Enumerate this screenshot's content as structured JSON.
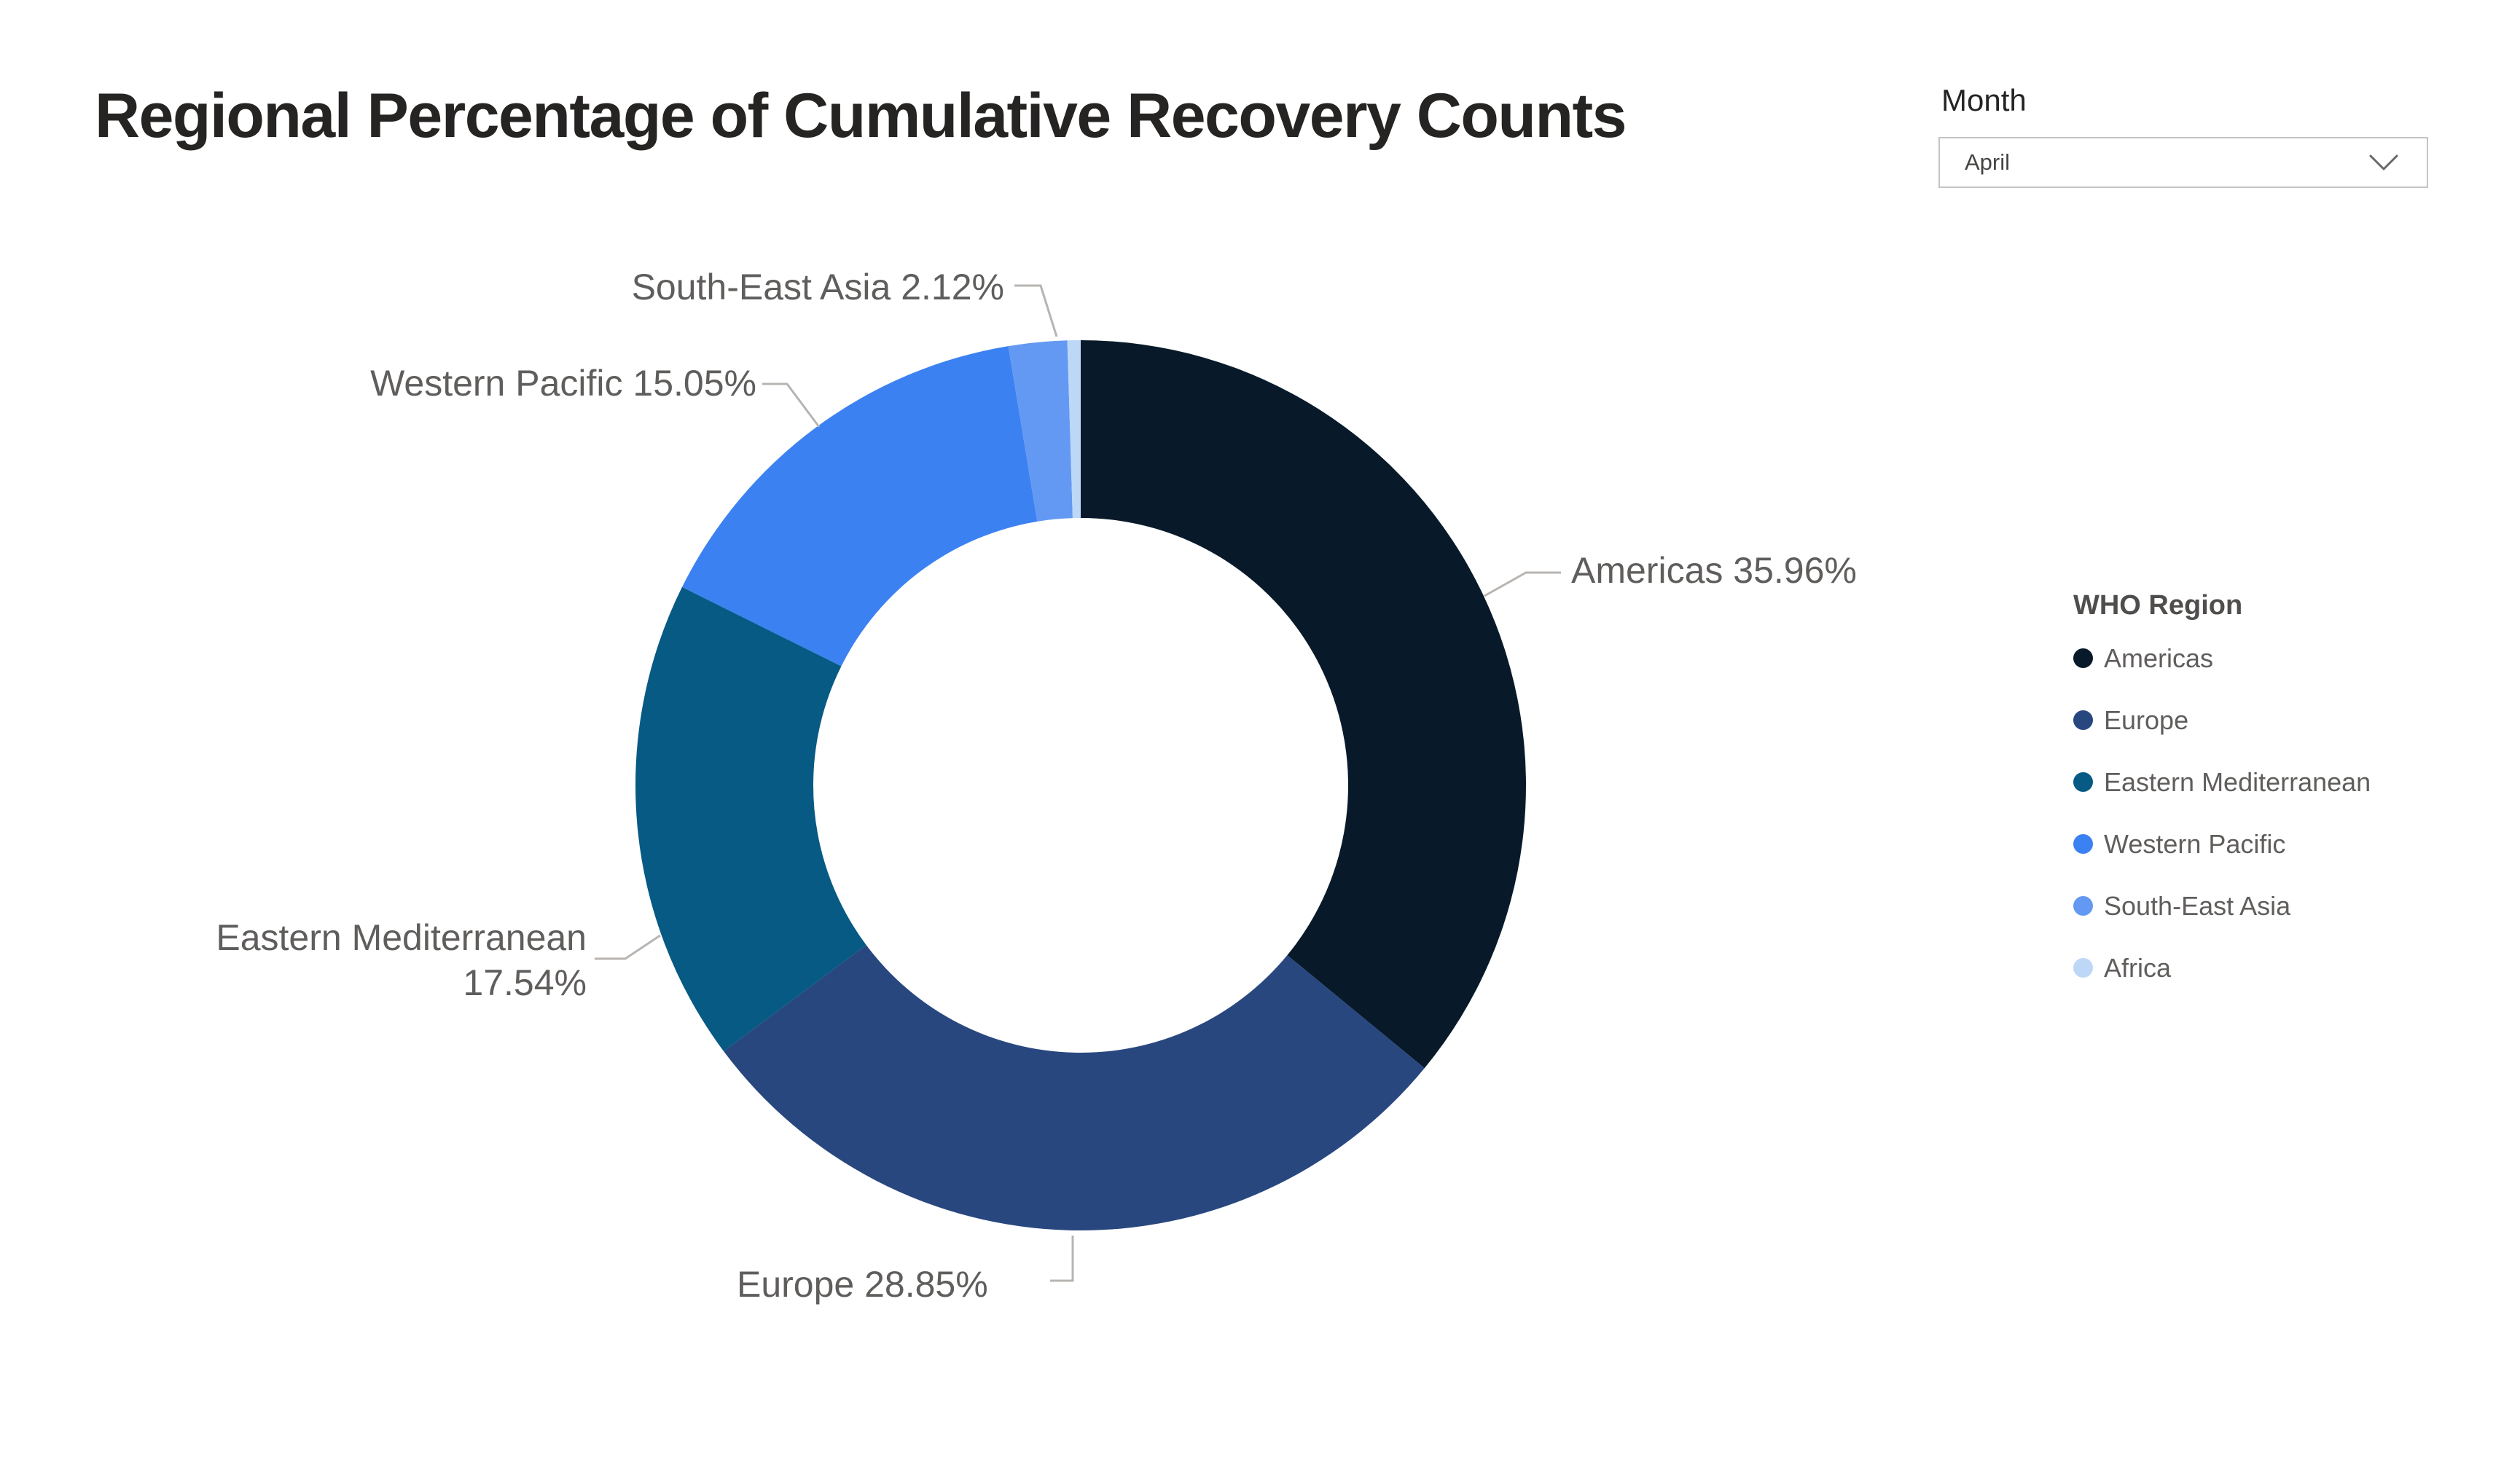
{
  "title": "Regional Percentage of Cumulative Recovery Counts",
  "slicer": {
    "label": "Month",
    "value": "April",
    "icon": "chevron-down-icon"
  },
  "legend": {
    "title": "WHO Region",
    "position": "right"
  },
  "chart_data": {
    "type": "pie",
    "subtype": "donut",
    "title": "Regional Percentage of Cumulative Recovery Counts",
    "unit": "%",
    "direction": "clockwise",
    "start_angle_deg": 0,
    "inner_radius_ratio": 0.6,
    "legend_title": "WHO Region",
    "legend_position": "right",
    "label_color": "#605E5C",
    "leader_line_color": "#B7B4B1",
    "series": [
      {
        "name": "Americas",
        "value": 35.96,
        "label": "Americas 35.96%",
        "label_visible": true,
        "color": "#081A2A"
      },
      {
        "name": "Europe",
        "value": 28.85,
        "label": "Europe 28.85%",
        "label_visible": true,
        "color": "#29477F"
      },
      {
        "name": "Eastern Mediterranean",
        "value": 17.54,
        "label": "Eastern Mediterranean 17.54%",
        "label_visible": true,
        "color": "#065A84"
      },
      {
        "name": "Western Pacific",
        "value": 15.05,
        "label": "Western Pacific 15.05%",
        "label_visible": true,
        "color": "#3B81F2"
      },
      {
        "name": "South-East Asia",
        "value": 2.12,
        "label": "South-East Asia 2.12%",
        "label_visible": true,
        "color": "#6399F2"
      },
      {
        "name": "Africa",
        "value": 0.48,
        "label": "",
        "label_visible": false,
        "color": "#BDD7F7"
      }
    ]
  }
}
